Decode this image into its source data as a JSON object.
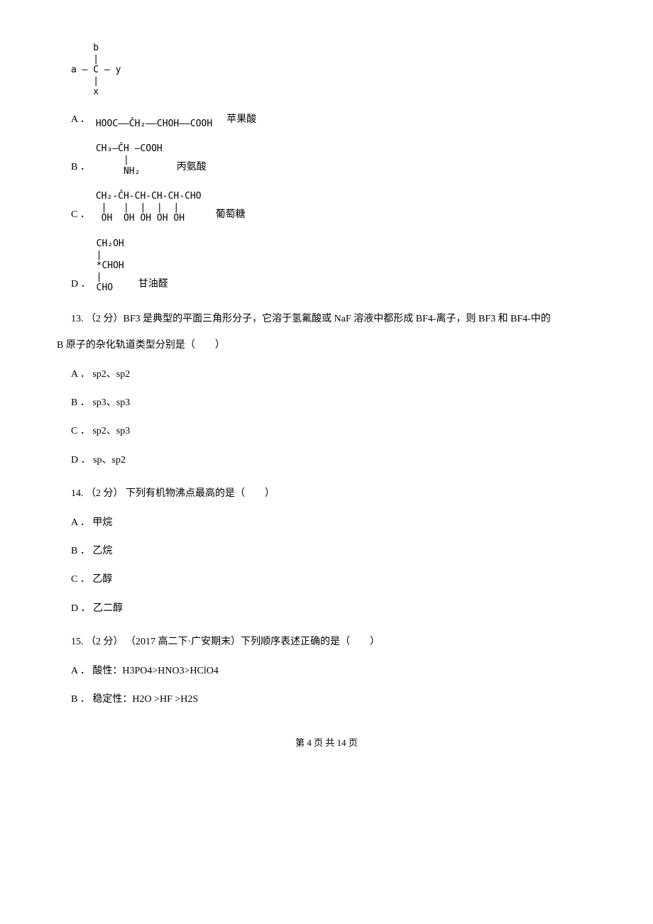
{
  "top_diagram": "    b\n    |\na — C — y\n    |\n    x",
  "q12": {
    "options": {
      "A": {
        "label": "A ．",
        "formula": "HOOC——ĈH₂——CHOH——COOH",
        "name": "苹果酸"
      },
      "B": {
        "label": "B ．",
        "formula": "CH₃—ĈH —COOH\n     |\n     NH₂",
        "name": "丙氨酸"
      },
      "C": {
        "label": "C ．",
        "formula": "CH₂-ĈH-CH-CH-CH-CHO\n |   |  |  |  |\n OH  OH OH OH OH",
        "name": "葡萄糖"
      },
      "D": {
        "label": "D ．",
        "formula": "CH₂OH\n|\n*CHOH\n|\nCHO",
        "name": "甘油醛"
      }
    }
  },
  "q13": {
    "text_line1": "13. （2 分）BF3 是典型的平面三角形分子，它溶于氢氟酸或 NaF 溶液中都形成 BF4-离子，则 BF3 和 BF4-中的",
    "text_line2": "B 原子的杂化轨道类型分别是（　　）",
    "options": {
      "A": "A ． sp2、sp2",
      "B": "B ． sp3、sp3",
      "C": "C ． sp2、sp3",
      "D": "D ． sp、sp2"
    }
  },
  "q14": {
    "text": "14. （2 分） 下列有机物沸点最高的是（　　）",
    "options": {
      "A": "A ． 甲烷",
      "B": "B ． 乙烷",
      "C": "C ． 乙醇",
      "D": "D ． 乙二醇"
    }
  },
  "q15": {
    "text": "15. （2 分） （2017 高二下·广安期末）下列顺序表述正确的是（　　）",
    "options": {
      "A": "A ． 酸性：H3PO4>HNO3>HClO4",
      "B": "B ． 稳定性：H2O >HF >H2S"
    }
  },
  "footer": "第 4 页 共 14 页"
}
